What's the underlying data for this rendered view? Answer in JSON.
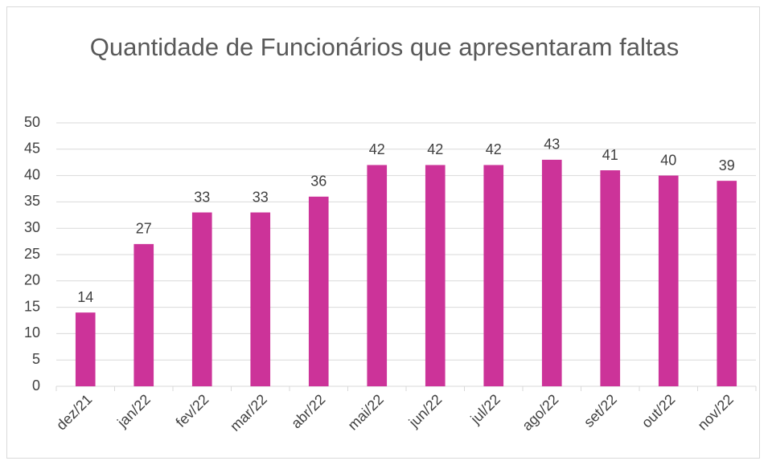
{
  "chart_data": {
    "type": "bar",
    "title": "Quantidade de Funcionários que apresentaram faltas",
    "categories": [
      "dez/21",
      "jan/22",
      "fev/22",
      "mar/22",
      "abr/22",
      "mai/22",
      "jun/22",
      "jul/22",
      "ago/22",
      "set/22",
      "out/22",
      "nov/22"
    ],
    "values": [
      14,
      27,
      33,
      33,
      36,
      42,
      42,
      42,
      43,
      41,
      40,
      39
    ],
    "color": "#cc3399",
    "ylim": [
      0,
      50
    ],
    "yticks": [
      0,
      5,
      10,
      15,
      20,
      25,
      30,
      35,
      40,
      45,
      50
    ],
    "grid": true
  }
}
